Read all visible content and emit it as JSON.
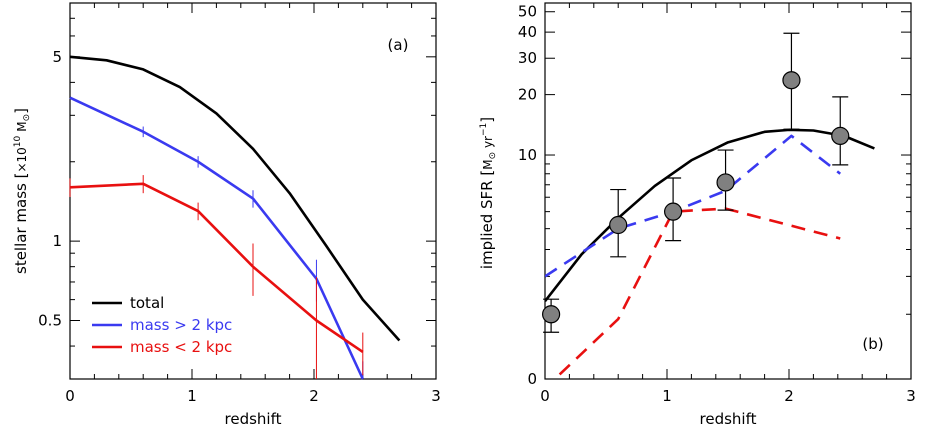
{
  "chart_data": [
    {
      "type": "line",
      "panel_label": "(a)",
      "xlabel": "redshift",
      "ylabel_main": "stellar mass [",
      "ylabel_unit": "×10",
      "ylabel_exp": "10",
      "ylabel_sym": "M",
      "ylabel_sun": "⊙",
      "ylabel_close": "]",
      "xlim": [
        0,
        3
      ],
      "ylim": [
        0.3,
        8
      ],
      "yscale": "log",
      "x_ticks": [
        0,
        1,
        2,
        3
      ],
      "x_tick_labels": [
        "0",
        "1",
        "2",
        "3"
      ],
      "y_ticks": [
        0.5,
        1,
        5
      ],
      "y_tick_labels": [
        "0.5",
        "1",
        "5"
      ],
      "legend_position": "bottom-left",
      "series": [
        {
          "name": "total",
          "color": "#000000",
          "x": [
            0,
            0.3,
            0.6,
            0.9,
            1.2,
            1.5,
            1.8,
            2.1,
            2.4,
            2.7
          ],
          "y": [
            5.0,
            4.85,
            4.48,
            3.84,
            3.05,
            2.24,
            1.52,
            0.96,
            0.6,
            0.42
          ]
        },
        {
          "name": "mass > 2 kpc",
          "color": "#3a3af0",
          "x": [
            0,
            0.6,
            1.05,
            1.5,
            2.02,
            2.4
          ],
          "y": [
            3.5,
            2.6,
            2.0,
            1.45,
            0.72,
            0.3
          ],
          "err": [
            0,
            0.12,
            0.1,
            0.11,
            0.13,
            0.05
          ]
        },
        {
          "name": "mass < 2 kpc",
          "color": "#e81010",
          "x": [
            0,
            0.6,
            1.05,
            1.5,
            2.02,
            2.4
          ],
          "y": [
            1.6,
            1.65,
            1.3,
            0.8,
            0.5,
            0.38
          ],
          "err": [
            0.13,
            0.13,
            0.1,
            0.18,
            0.23,
            0.07
          ]
        }
      ]
    },
    {
      "type": "scatter",
      "panel_label": "(b)",
      "xlabel": "redshift",
      "ylabel_main": "implied SFR [",
      "ylabel_unit": "M",
      "ylabel_sun": "⊙",
      "ylabel_tail": " yr",
      "ylabel_exp": "−1",
      "ylabel_close": "]",
      "xlim": [
        0,
        3
      ],
      "ylim": [
        0,
        55
      ],
      "yscale": "log(1+y)",
      "x_ticks": [
        0,
        1,
        2,
        3
      ],
      "x_tick_labels": [
        "0",
        "1",
        "2",
        "3"
      ],
      "y_ticks": [
        0,
        10,
        20,
        30,
        40,
        50
      ],
      "y_tick_labels": [
        "0",
        "10",
        "20",
        "30",
        "40",
        "50"
      ],
      "points": {
        "color": "#808080",
        "x": [
          0.05,
          0.6,
          1.05,
          1.48,
          2.02,
          2.42
        ],
        "y": [
          1.0,
          4.2,
          5.0,
          7.2,
          23.5,
          12.5
        ],
        "err_low": [
          0.35,
          1.5,
          1.6,
          2.1,
          10.0,
          3.6
        ],
        "err_high": [
          0.35,
          2.4,
          2.6,
          3.4,
          16.0,
          7.0
        ]
      },
      "series": [
        {
          "style": "solid",
          "color": "#000000",
          "x": [
            0,
            0.3,
            0.6,
            0.9,
            1.2,
            1.5,
            1.8,
            2.0,
            2.2,
            2.45,
            2.7
          ],
          "y": [
            1.3,
            2.8,
            4.6,
            6.9,
            9.4,
            11.6,
            13.1,
            13.4,
            13.3,
            12.5,
            10.8
          ]
        },
        {
          "style": "dashed",
          "color": "#3a3af0",
          "x": [
            0,
            0.6,
            1.05,
            1.48,
            2.02,
            2.42
          ],
          "y": [
            2.0,
            4.0,
            5.0,
            6.5,
            12.5,
            8.0
          ]
        },
        {
          "style": "dashed",
          "color": "#e81010",
          "x": [
            0.12,
            0.6,
            1.05,
            1.48,
            2.42
          ],
          "y": [
            0.05,
            0.9,
            5.0,
            5.2,
            3.5
          ]
        }
      ]
    }
  ]
}
